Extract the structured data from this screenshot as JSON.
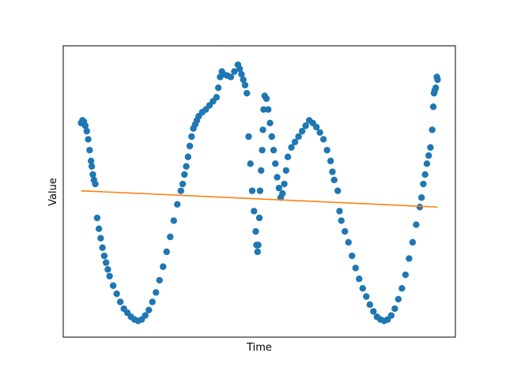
{
  "chart_data": {
    "type": "scatter",
    "title": "",
    "xlabel": "Time",
    "ylabel": "Value",
    "xticks": false,
    "yticks": false,
    "xlim": [
      -0.05,
      1.05
    ],
    "ylim": [
      -1.08,
      1.07
    ],
    "colors": {
      "scatter": "#1f77b4",
      "trend": "#ff7f0e"
    },
    "series": [
      {
        "kind": "scatter",
        "points": [
          [
            0.0,
            0.5
          ],
          [
            0.004,
            0.52
          ],
          [
            0.008,
            0.51
          ],
          [
            0.012,
            0.48
          ],
          [
            0.016,
            0.44
          ],
          [
            0.02,
            0.38
          ],
          [
            0.024,
            0.3
          ],
          [
            0.028,
            0.22
          ],
          [
            0.03,
            0.18
          ],
          [
            0.033,
            0.12
          ],
          [
            0.036,
            0.08
          ],
          [
            0.04,
            0.05
          ],
          [
            0.045,
            -0.2
          ],
          [
            0.05,
            -0.28
          ],
          [
            0.055,
            -0.35
          ],
          [
            0.06,
            -0.42
          ],
          [
            0.065,
            -0.48
          ],
          [
            0.07,
            -0.53
          ],
          [
            0.075,
            -0.58
          ],
          [
            0.08,
            -0.63
          ],
          [
            0.09,
            -0.7
          ],
          [
            0.1,
            -0.76
          ],
          [
            0.11,
            -0.82
          ],
          [
            0.12,
            -0.87
          ],
          [
            0.13,
            -0.9
          ],
          [
            0.14,
            -0.93
          ],
          [
            0.15,
            -0.95
          ],
          [
            0.16,
            -0.96
          ],
          [
            0.17,
            -0.95
          ],
          [
            0.18,
            -0.92
          ],
          [
            0.19,
            -0.88
          ],
          [
            0.2,
            -0.82
          ],
          [
            0.21,
            -0.75
          ],
          [
            0.22,
            -0.66
          ],
          [
            0.23,
            -0.56
          ],
          [
            0.24,
            -0.45
          ],
          [
            0.25,
            -0.34
          ],
          [
            0.26,
            -0.22
          ],
          [
            0.27,
            -0.1
          ],
          [
            0.28,
            0.0
          ],
          [
            0.285,
            0.05
          ],
          [
            0.29,
            0.12
          ],
          [
            0.295,
            0.18
          ],
          [
            0.3,
            0.25
          ],
          [
            0.305,
            0.33
          ],
          [
            0.31,
            0.4
          ],
          [
            0.315,
            0.46
          ],
          [
            0.32,
            0.49
          ],
          [
            0.325,
            0.52
          ],
          [
            0.33,
            0.55
          ],
          [
            0.34,
            0.58
          ],
          [
            0.35,
            0.6
          ],
          [
            0.36,
            0.63
          ],
          [
            0.37,
            0.66
          ],
          [
            0.38,
            0.69
          ],
          [
            0.385,
            0.76
          ],
          [
            0.39,
            0.84
          ],
          [
            0.395,
            0.88
          ],
          [
            0.4,
            0.86
          ],
          [
            0.41,
            0.85
          ],
          [
            0.42,
            0.84
          ],
          [
            0.43,
            0.88
          ],
          [
            0.44,
            0.93
          ],
          [
            0.445,
            0.9
          ],
          [
            0.45,
            0.86
          ],
          [
            0.455,
            0.82
          ],
          [
            0.46,
            0.78
          ],
          [
            0.465,
            0.72
          ],
          [
            0.47,
            0.4
          ],
          [
            0.475,
            0.2
          ],
          [
            0.48,
            0.0
          ],
          [
            0.485,
            -0.15
          ],
          [
            0.49,
            -0.3
          ],
          [
            0.492,
            -0.4
          ],
          [
            0.495,
            -0.45
          ],
          [
            0.497,
            -0.4
          ],
          [
            0.5,
            -0.2
          ],
          [
            0.502,
            0.0
          ],
          [
            0.505,
            0.15
          ],
          [
            0.508,
            0.3
          ],
          [
            0.51,
            0.45
          ],
          [
            0.512,
            0.6
          ],
          [
            0.515,
            0.7
          ],
          [
            0.52,
            0.68
          ],
          [
            0.525,
            0.6
          ],
          [
            0.53,
            0.5
          ],
          [
            0.535,
            0.4
          ],
          [
            0.54,
            0.3
          ],
          [
            0.545,
            0.2
          ],
          [
            0.55,
            0.1
          ],
          [
            0.555,
            0.02
          ],
          [
            0.56,
            -0.05
          ],
          [
            0.565,
            -0.02
          ],
          [
            0.57,
            0.05
          ],
          [
            0.575,
            0.15
          ],
          [
            0.58,
            0.25
          ],
          [
            0.59,
            0.32
          ],
          [
            0.6,
            0.36
          ],
          [
            0.61,
            0.4
          ],
          [
            0.62,
            0.44
          ],
          [
            0.63,
            0.48
          ],
          [
            0.64,
            0.52
          ],
          [
            0.65,
            0.5
          ],
          [
            0.66,
            0.47
          ],
          [
            0.67,
            0.43
          ],
          [
            0.68,
            0.38
          ],
          [
            0.69,
            0.3
          ],
          [
            0.7,
            0.22
          ],
          [
            0.705,
            0.14
          ],
          [
            0.71,
            0.08
          ],
          [
            0.72,
            0.0
          ],
          [
            0.725,
            -0.15
          ],
          [
            0.73,
            -0.22
          ],
          [
            0.74,
            -0.3
          ],
          [
            0.75,
            -0.38
          ],
          [
            0.76,
            -0.48
          ],
          [
            0.77,
            -0.57
          ],
          [
            0.78,
            -0.65
          ],
          [
            0.79,
            -0.72
          ],
          [
            0.8,
            -0.78
          ],
          [
            0.81,
            -0.84
          ],
          [
            0.82,
            -0.89
          ],
          [
            0.83,
            -0.93
          ],
          [
            0.84,
            -0.95
          ],
          [
            0.85,
            -0.96
          ],
          [
            0.86,
            -0.95
          ],
          [
            0.87,
            -0.92
          ],
          [
            0.88,
            -0.87
          ],
          [
            0.89,
            -0.8
          ],
          [
            0.9,
            -0.72
          ],
          [
            0.91,
            -0.62
          ],
          [
            0.92,
            -0.5
          ],
          [
            0.93,
            -0.38
          ],
          [
            0.94,
            -0.25
          ],
          [
            0.95,
            -0.12
          ],
          [
            0.955,
            -0.05
          ],
          [
            0.96,
            0.05
          ],
          [
            0.965,
            0.12
          ],
          [
            0.97,
            0.2
          ],
          [
            0.975,
            0.26
          ],
          [
            0.98,
            0.32
          ],
          [
            0.985,
            0.45
          ],
          [
            0.99,
            0.72
          ],
          [
            0.995,
            0.76
          ],
          [
            1.0,
            0.82
          ],
          [
            0.988,
            0.62
          ],
          [
            0.992,
            0.74
          ],
          [
            0.998,
            0.84
          ]
        ]
      },
      {
        "kind": "line",
        "x": [
          0.0,
          1.0
        ],
        "y": [
          0.0,
          -0.12
        ]
      }
    ]
  }
}
